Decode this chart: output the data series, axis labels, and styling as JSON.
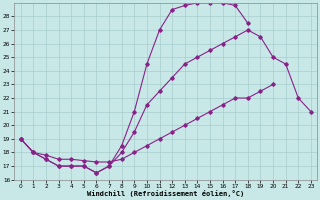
{
  "background_color": "#c8e8e8",
  "grid_color": "#a8cccc",
  "line_color": "#882288",
  "xlabel": "Windchill (Refroidissement éolien,°C)",
  "xlim": [
    -0.5,
    23.5
  ],
  "ylim": [
    16,
    29
  ],
  "xticks": [
    0,
    1,
    2,
    3,
    4,
    5,
    6,
    7,
    8,
    9,
    10,
    11,
    12,
    13,
    14,
    15,
    16,
    17,
    18,
    19,
    20,
    21,
    22,
    23
  ],
  "yticks": [
    16,
    17,
    18,
    19,
    20,
    21,
    22,
    23,
    24,
    25,
    26,
    27,
    28
  ],
  "curve1_x": [
    0,
    1,
    2,
    3,
    4,
    5,
    6,
    7,
    8,
    9,
    10,
    11,
    12,
    13,
    14,
    15,
    16,
    17,
    18,
    19,
    20,
    21
  ],
  "curve1_y": [
    19,
    18,
    17.5,
    17,
    17,
    17,
    16.5,
    17,
    18.5,
    21,
    24.5,
    27,
    28.5,
    28.8,
    29,
    29,
    29,
    28.8,
    27.5,
    null,
    null,
    null
  ],
  "curve2_x": [
    0,
    1,
    2,
    3,
    4,
    5,
    6,
    7,
    8,
    9,
    10,
    11,
    12,
    13,
    14,
    15,
    16,
    17,
    18,
    19,
    20,
    21,
    22,
    23
  ],
  "curve2_y": [
    19,
    18,
    17.5,
    17,
    17,
    17,
    16.5,
    17,
    18,
    19.5,
    21.5,
    22.5,
    23.5,
    24.5,
    25,
    25.5,
    26,
    26.5,
    27,
    26.5,
    25,
    24.5,
    22,
    21
  ],
  "curve3_x": [
    0,
    1,
    2,
    3,
    4,
    5,
    6,
    7,
    8,
    9,
    10,
    11,
    12,
    13,
    14,
    15,
    16,
    17,
    18,
    19,
    20,
    21,
    22,
    23
  ],
  "curve3_y": [
    19,
    18,
    17.8,
    17.5,
    17.5,
    17.4,
    17.3,
    17.3,
    17.5,
    18,
    18.5,
    19,
    19.5,
    20,
    20.5,
    21,
    21.5,
    22,
    22,
    22.5,
    23,
    null,
    null,
    null
  ]
}
